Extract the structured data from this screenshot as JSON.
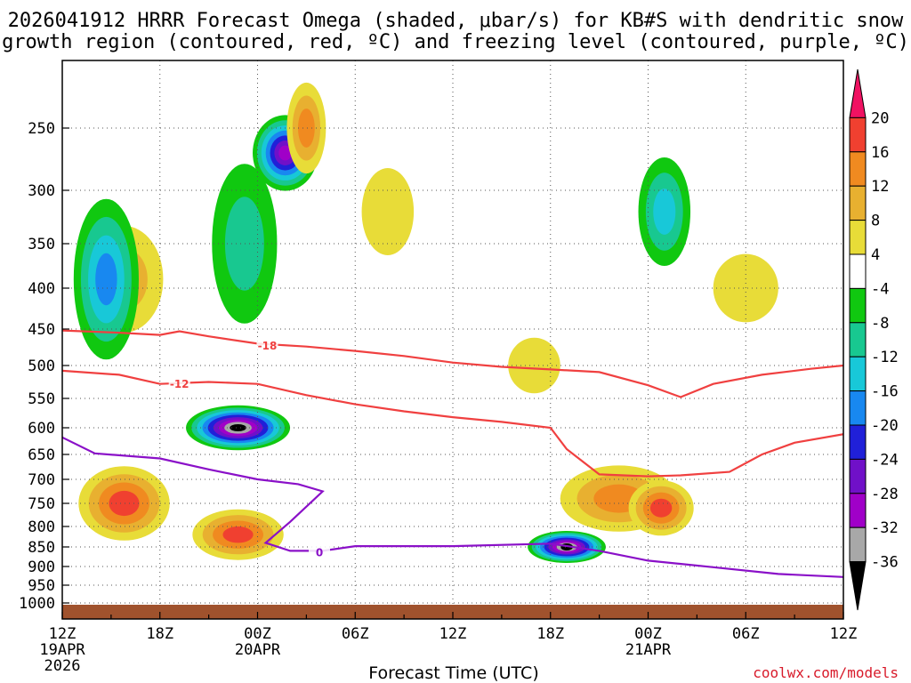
{
  "chart_data": {
    "type": "contour-cross-section",
    "title_line1": "2026041912 HRRR Forecast Omega (shaded, μbar/s) for KB#S with dendritic snow",
    "title_line2": "growth region (contoured, red, ºC) and freezing level (contoured, purple, ºC)",
    "xlabel": "Forecast Time (UTC)",
    "ylabel": "",
    "credit": "coolwx.com/models",
    "x_range_hours": [
      0,
      48
    ],
    "y_range_mb": [
      1000,
      200
    ],
    "y_ticks": [
      250,
      300,
      350,
      400,
      450,
      500,
      550,
      600,
      650,
      700,
      750,
      800,
      850,
      900,
      950,
      1000
    ],
    "x_ticks": [
      {
        "hour": 0,
        "label": "12Z",
        "sub1": "19APR",
        "sub2": "2026"
      },
      {
        "hour": 6,
        "label": "18Z",
        "sub1": "",
        "sub2": ""
      },
      {
        "hour": 12,
        "label": "00Z",
        "sub1": "20APR",
        "sub2": ""
      },
      {
        "hour": 18,
        "label": "06Z",
        "sub1": "",
        "sub2": ""
      },
      {
        "hour": 24,
        "label": "12Z",
        "sub1": "",
        "sub2": ""
      },
      {
        "hour": 30,
        "label": "18Z",
        "sub1": "",
        "sub2": ""
      },
      {
        "hour": 36,
        "label": "00Z",
        "sub1": "21APR",
        "sub2": ""
      },
      {
        "hour": 42,
        "label": "06Z",
        "sub1": "",
        "sub2": ""
      },
      {
        "hour": 48,
        "label": "12Z",
        "sub1": "",
        "sub2": ""
      }
    ],
    "colorbar": {
      "labels": [
        "20",
        "16",
        "12",
        "8",
        "4",
        "-4",
        "-8",
        "-12",
        "-16",
        "-20",
        "-24",
        "-28",
        "-32",
        "-36"
      ],
      "colors": [
        "#f01262",
        "#f04030",
        "#f08a20",
        "#e8b030",
        "#e8dc38",
        "#ffffff",
        "#10c810",
        "#18c890",
        "#18c8d8",
        "#1888f0",
        "#2020d8",
        "#7010c8",
        "#a000c8",
        "#a8a8a8",
        "#000000"
      ]
    },
    "omega_features": [
      {
        "t": 3.8,
        "p": 750,
        "rt": 0.7,
        "rp": 80,
        "v": 18
      },
      {
        "t": 3.8,
        "p": 390,
        "rt": 0.6,
        "rp": 60,
        "v": 10
      },
      {
        "t": 10.8,
        "p": 820,
        "rt": 0.7,
        "rp": 60,
        "v": 18
      },
      {
        "t": 2.7,
        "p": 390,
        "rt": 0.5,
        "rp": 90,
        "v": -16
      },
      {
        "t": 10.8,
        "p": 600,
        "rt": 0.8,
        "rp": 40,
        "v": -36
      },
      {
        "t": 13.7,
        "p": 270,
        "rt": 0.5,
        "rp": 30,
        "v": -28
      },
      {
        "t": 15.0,
        "p": 250,
        "rt": 0.3,
        "rp": 35,
        "v": 12
      },
      {
        "t": 31.0,
        "p": 850,
        "rt": 0.6,
        "rp": 40,
        "v": -36
      },
      {
        "t": 34.2,
        "p": 740,
        "rt": 0.9,
        "rp": 70,
        "v": 12
      },
      {
        "t": 36.8,
        "p": 760,
        "rt": 0.5,
        "rp": 60,
        "v": 16
      },
      {
        "t": 37.0,
        "p": 320,
        "rt": 0.4,
        "rp": 50,
        "v": -12
      },
      {
        "t": 11.2,
        "p": 350,
        "rt": 0.5,
        "rp": 80,
        "v": -8
      },
      {
        "t": 42.0,
        "p": 400,
        "rt": 0.5,
        "rp": 40,
        "v": 6
      },
      {
        "t": 20.0,
        "p": 320,
        "rt": 0.4,
        "rp": 40,
        "v": 5
      },
      {
        "t": 29.0,
        "p": 500,
        "rt": 0.4,
        "rp": 40,
        "v": 5
      }
    ],
    "contours": [
      {
        "name": "dgz-upper",
        "label": "-18",
        "color": "#f04040",
        "label_at": [
          12.6,
          472
        ],
        "points": [
          [
            0,
            452
          ],
          [
            3.5,
            455
          ],
          [
            6,
            458
          ],
          [
            7.2,
            453
          ],
          [
            9,
            460
          ],
          [
            12,
            470
          ],
          [
            15,
            474
          ],
          [
            18,
            480
          ],
          [
            21,
            487
          ],
          [
            24,
            496
          ],
          [
            27,
            502
          ],
          [
            30,
            506
          ],
          [
            33,
            510
          ],
          [
            36,
            530
          ],
          [
            38,
            548
          ],
          [
            40,
            528
          ],
          [
            43,
            514
          ],
          [
            46,
            505
          ],
          [
            48,
            500
          ]
        ]
      },
      {
        "name": "dgz-lower",
        "label": "-12",
        "color": "#f04040",
        "label_at": [
          7.2,
          527
        ],
        "points": [
          [
            0,
            508
          ],
          [
            3.5,
            514
          ],
          [
            6,
            528
          ],
          [
            9,
            525
          ],
          [
            12,
            528
          ],
          [
            15,
            545
          ],
          [
            18,
            560
          ],
          [
            21,
            572
          ],
          [
            24,
            582
          ],
          [
            27,
            590
          ],
          [
            30,
            600
          ],
          [
            31,
            640
          ],
          [
            33,
            690
          ],
          [
            36,
            694
          ],
          [
            38,
            692
          ],
          [
            41,
            685
          ],
          [
            43,
            650
          ],
          [
            45,
            628
          ],
          [
            48,
            612
          ]
        ]
      },
      {
        "name": "freezing-level",
        "label": "0",
        "color": "#8a10c8",
        "label_at": [
          15.8,
          862
        ],
        "points": [
          [
            0,
            618
          ],
          [
            2,
            648
          ],
          [
            6,
            658
          ],
          [
            9,
            680
          ],
          [
            12,
            700
          ],
          [
            14.5,
            710
          ],
          [
            16,
            725
          ],
          [
            14,
            790
          ],
          [
            12.5,
            840
          ],
          [
            14,
            860
          ],
          [
            16,
            860
          ],
          [
            18,
            848
          ],
          [
            24,
            848
          ],
          [
            30,
            842
          ],
          [
            33,
            860
          ],
          [
            36,
            885
          ],
          [
            40,
            902
          ],
          [
            44,
            920
          ],
          [
            48,
            928
          ]
        ]
      }
    ]
  }
}
